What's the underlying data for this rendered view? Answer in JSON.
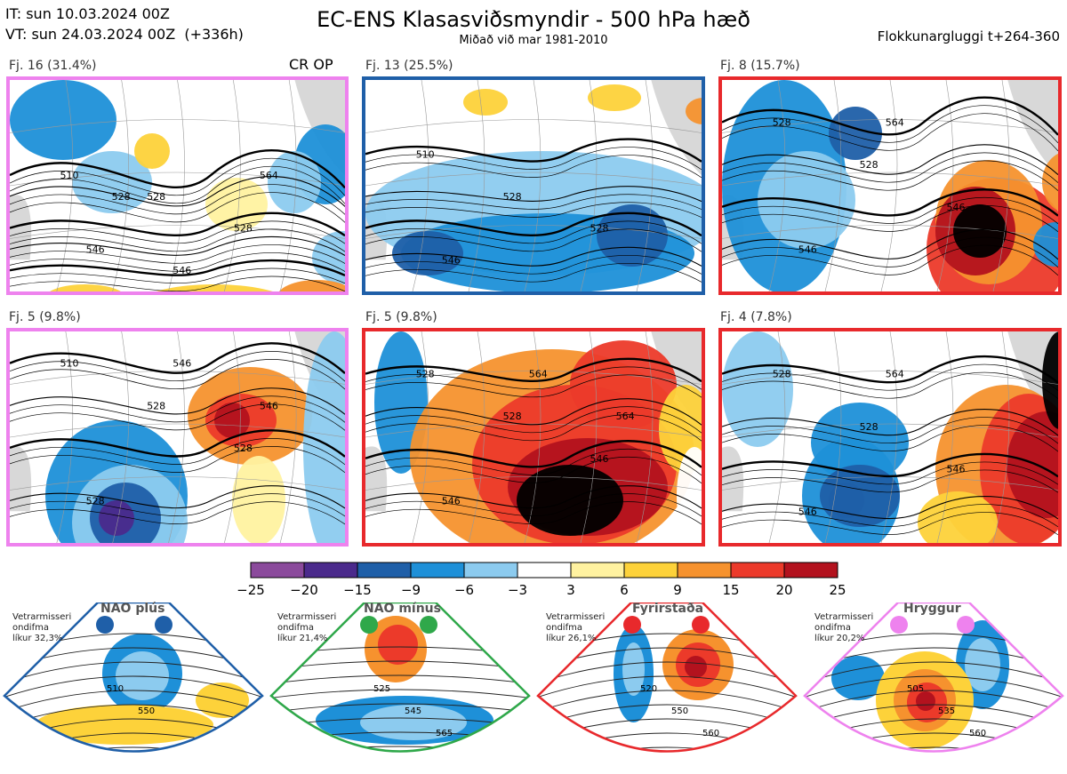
{
  "header": {
    "it_line": "IT: sun 10.03.2024 00Z",
    "vt_line": "VT: sun 24.03.2024 00Z  (+336h)",
    "title": "EC-ENS Klasasviðsmyndir - 500 hPa hæð",
    "subtitle": "Miðað við mar 1981-2010",
    "window": "Flokkunargluggi t+264-360"
  },
  "crop_label": "CR OP",
  "panels": [
    {
      "label": "Fj. 16 (31.4%)",
      "border": "#ee82ee",
      "regime": "Hryggur",
      "contour_labels": [
        "510",
        "528",
        "528",
        "546",
        "546",
        "564",
        "528"
      ]
    },
    {
      "label": "Fj. 13 (25.5%)",
      "border": "#1f5fa8",
      "regime": "NAO plús",
      "contour_labels": [
        "510",
        "528",
        "528",
        "546"
      ]
    },
    {
      "label": "Fj. 8 (15.7%)",
      "border": "#e8292c",
      "regime": "Fyrirstaða",
      "contour_labels": [
        "528",
        "528",
        "546",
        "546",
        "564"
      ]
    },
    {
      "label": "Fj. 5 (9.8%)",
      "border": "#ee82ee",
      "regime": "Hryggur",
      "contour_labels": [
        "510",
        "528",
        "528",
        "528",
        "546",
        "546"
      ]
    },
    {
      "label": "Fj. 5 (9.8%)",
      "border": "#e8292c",
      "regime": "Fyrirstaða",
      "contour_labels": [
        "528",
        "528",
        "546",
        "546",
        "564",
        "564"
      ]
    },
    {
      "label": "Fj. 4 (7.8%)",
      "border": "#e8292c",
      "regime": "Fyrirstaða",
      "contour_labels": [
        "528",
        "528",
        "546",
        "546",
        "564"
      ]
    }
  ],
  "colorbar": {
    "ticks": [
      "−25",
      "−20",
      "−15",
      "−9",
      "−6",
      "−3",
      "3",
      "6",
      "9",
      "15",
      "20",
      "25"
    ],
    "colors": [
      "#8b4a9c",
      "#4b2a8c",
      "#1f5fa8",
      "#1e90d8",
      "#8ccbef",
      "#ffffff",
      "#fff2a0",
      "#fdd23a",
      "#f6922e",
      "#ec3a2a",
      "#b3121e"
    ]
  },
  "regimes": [
    {
      "title": "NAO plús",
      "note": "Vetrarmisseri\nondifma\nlíkur 32,3%",
      "color": "#1f5fa8",
      "labels": [
        "510",
        "550"
      ]
    },
    {
      "title": "NAO mínus",
      "note": "Vetrarmisseri\nondifma\nlíkur 21,4%",
      "color": "#2fa84a",
      "labels": [
        "525",
        "545",
        "565"
      ]
    },
    {
      "title": "Fyrirstaða",
      "note": "Vetrarmisseri\nondifma\nlíkur 26,1%",
      "color": "#e8292c",
      "labels": [
        "520",
        "550",
        "560"
      ]
    },
    {
      "title": "Hryggur",
      "note": "Vetrarmisseri\nondifma\nlíkur 20,2%",
      "color": "#ee82ee",
      "labels": [
        "505",
        "535",
        "560"
      ]
    }
  ]
}
